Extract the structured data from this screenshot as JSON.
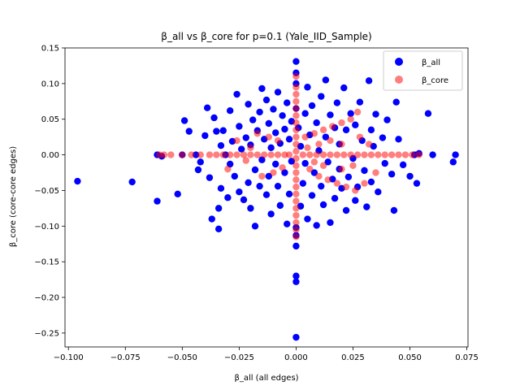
{
  "chart_data": {
    "type": "scatter",
    "title": "β_all vs β_core for p=0.1 (Yale_IID_Sample)",
    "xlabel": "β_all (all edges)",
    "ylabel": "β_core (core-core edges)",
    "xlim": [
      -0.1015,
      0.0755
    ],
    "ylim": [
      -0.2695,
      0.15
    ],
    "xticks": [
      -0.1,
      -0.075,
      -0.05,
      -0.025,
      0.0,
      0.025,
      0.05,
      0.075
    ],
    "xtick_labels": [
      "−0.100",
      "−0.075",
      "−0.050",
      "−0.025",
      "0.000",
      "0.025",
      "0.050",
      "0.075"
    ],
    "yticks": [
      -0.25,
      -0.2,
      -0.15,
      -0.1,
      -0.05,
      0.0,
      0.05,
      0.1,
      0.15
    ],
    "ytick_labels": [
      "−0.25",
      "−0.20",
      "−0.15",
      "−0.10",
      "−0.05",
      "0.00",
      "0.05",
      "0.10",
      "0.15"
    ],
    "grid": false,
    "legend_position": "top-right",
    "series": [
      {
        "name": "β_all",
        "color": "#0000ff",
        "points": [
          [
            -0.096,
            -0.037
          ],
          [
            -0.072,
            -0.038
          ],
          [
            -0.061,
            -0.065
          ],
          [
            -0.061,
            0.0
          ],
          [
            -0.059,
            -0.002
          ],
          [
            -0.052,
            -0.055
          ],
          [
            -0.05,
            0.0
          ],
          [
            -0.049,
            0.048
          ],
          [
            -0.047,
            0.033
          ],
          [
            -0.044,
            0.0
          ],
          [
            -0.043,
            -0.021
          ],
          [
            -0.042,
            -0.01
          ],
          [
            -0.04,
            0.027
          ],
          [
            -0.039,
            0.066
          ],
          [
            -0.038,
            -0.032
          ],
          [
            -0.037,
            -0.09
          ],
          [
            -0.036,
            0.052
          ],
          [
            -0.035,
            0.033
          ],
          [
            -0.034,
            -0.075
          ],
          [
            -0.034,
            -0.104
          ],
          [
            -0.033,
            0.013
          ],
          [
            -0.033,
            -0.047
          ],
          [
            -0.032,
            0.034
          ],
          [
            -0.031,
            0.0
          ],
          [
            -0.03,
            -0.06
          ],
          [
            -0.029,
            0.062
          ],
          [
            -0.029,
            -0.013
          ],
          [
            -0.028,
            0.019
          ],
          [
            -0.027,
            -0.03
          ],
          [
            -0.026,
            0.085
          ],
          [
            -0.025,
            0.04
          ],
          [
            -0.025,
            -0.052
          ],
          [
            -0.024,
            0.008
          ],
          [
            -0.023,
            -0.063
          ],
          [
            -0.022,
            0.024
          ],
          [
            -0.021,
            -0.039
          ],
          [
            -0.021,
            0.071
          ],
          [
            -0.02,
            -0.075
          ],
          [
            -0.02,
            0.014
          ],
          [
            -0.019,
            0.049
          ],
          [
            -0.018,
            -0.021
          ],
          [
            -0.018,
            -0.1
          ],
          [
            -0.017,
            0.034
          ],
          [
            -0.016,
            -0.044
          ],
          [
            -0.016,
            0.06
          ],
          [
            -0.015,
            -0.007
          ],
          [
            -0.015,
            0.093
          ],
          [
            -0.014,
            0.022
          ],
          [
            -0.013,
            -0.056
          ],
          [
            -0.013,
            0.077
          ],
          [
            -0.012,
            -0.03
          ],
          [
            -0.012,
            0.044
          ],
          [
            -0.011,
            0.01
          ],
          [
            -0.011,
            -0.083
          ],
          [
            -0.01,
            0.064
          ],
          [
            -0.009,
            -0.013
          ],
          [
            -0.009,
            0.031
          ],
          [
            -0.008,
            -0.044
          ],
          [
            -0.008,
            0.088
          ],
          [
            -0.007,
            -0.071
          ],
          [
            -0.007,
            0.016
          ],
          [
            -0.006,
            0.055
          ],
          [
            -0.005,
            -0.025
          ],
          [
            -0.005,
            0.036
          ],
          [
            -0.004,
            -0.097
          ],
          [
            -0.004,
            0.073
          ],
          [
            -0.003,
            -0.055
          ],
          [
            -0.003,
            0.022
          ],
          [
            -0.002,
            -0.009
          ],
          [
            -0.002,
            0.047
          ],
          [
            0.0,
            0.131
          ],
          [
            0.0,
            0.115
          ],
          [
            0.0,
            0.1
          ],
          [
            0.0,
            0.065
          ],
          [
            0.0,
            -0.17
          ],
          [
            0.0,
            -0.178
          ],
          [
            0.0,
            -0.256
          ],
          [
            0.0,
            -0.113
          ],
          [
            0.0,
            -0.102
          ],
          [
            0.0,
            -0.128
          ],
          [
            0.001,
            0.038
          ],
          [
            0.002,
            -0.072
          ],
          [
            0.002,
            0.012
          ],
          [
            0.003,
            -0.04
          ],
          [
            0.004,
            0.058
          ],
          [
            0.004,
            -0.012
          ],
          [
            0.005,
            0.095
          ],
          [
            0.005,
            -0.09
          ],
          [
            0.006,
            0.028
          ],
          [
            0.007,
            -0.057
          ],
          [
            0.007,
            0.069
          ],
          [
            0.008,
            -0.025
          ],
          [
            0.009,
            0.045
          ],
          [
            0.009,
            -0.099
          ],
          [
            0.01,
            0.006
          ],
          [
            0.011,
            -0.044
          ],
          [
            0.011,
            0.082
          ],
          [
            0.012,
            -0.07
          ],
          [
            0.013,
            0.025
          ],
          [
            0.013,
            0.105
          ],
          [
            0.014,
            -0.01
          ],
          [
            0.015,
            0.056
          ],
          [
            0.015,
            -0.095
          ],
          [
            0.016,
            -0.034
          ],
          [
            0.017,
            0.038
          ],
          [
            0.017,
            -0.061
          ],
          [
            0.018,
            0.073
          ],
          [
            0.019,
            -0.02
          ],
          [
            0.019,
            0.015
          ],
          [
            0.02,
            -0.047
          ],
          [
            0.021,
            0.094
          ],
          [
            0.022,
            -0.078
          ],
          [
            0.022,
            0.035
          ],
          [
            0.023,
            -0.031
          ],
          [
            0.024,
            0.058
          ],
          [
            0.025,
            -0.005
          ],
          [
            0.026,
            -0.064
          ],
          [
            0.026,
            0.042
          ],
          [
            0.027,
            -0.045
          ],
          [
            0.028,
            0.074
          ],
          [
            0.029,
            0.02
          ],
          [
            0.03,
            -0.022
          ],
          [
            0.031,
            -0.073
          ],
          [
            0.032,
            0.104
          ],
          [
            0.033,
            0.035
          ],
          [
            0.033,
            -0.038
          ],
          [
            0.034,
            0.012
          ],
          [
            0.035,
            0.057
          ],
          [
            0.036,
            -0.052
          ],
          [
            0.038,
            0.024
          ],
          [
            0.039,
            -0.012
          ],
          [
            0.04,
            0.049
          ],
          [
            0.042,
            -0.027
          ],
          [
            0.043,
            -0.078
          ],
          [
            0.044,
            0.074
          ],
          [
            0.045,
            0.022
          ],
          [
            0.047,
            -0.014
          ],
          [
            0.05,
            -0.03
          ],
          [
            0.053,
            -0.04
          ],
          [
            0.054,
            0.002
          ],
          [
            0.058,
            0.058
          ],
          [
            0.06,
            0.0
          ],
          [
            0.069,
            -0.01
          ],
          [
            0.07,
            0.0
          ],
          [
            0.052,
            0.0
          ]
        ]
      },
      {
        "name": "β_core",
        "color": "#ff0000",
        "opacity": 0.5,
        "points": [
          [
            -0.06,
            0.0
          ],
          [
            -0.058,
            0.0
          ],
          [
            -0.055,
            0.0
          ],
          [
            -0.05,
            0.0
          ],
          [
            -0.046,
            0.0
          ],
          [
            -0.042,
            0.0
          ],
          [
            -0.038,
            0.0
          ],
          [
            -0.035,
            0.0
          ],
          [
            -0.032,
            0.0
          ],
          [
            -0.029,
            0.0
          ],
          [
            -0.026,
            0.0
          ],
          [
            -0.023,
            0.0
          ],
          [
            -0.02,
            0.0
          ],
          [
            -0.017,
            0.0
          ],
          [
            -0.014,
            0.0
          ],
          [
            -0.011,
            0.0
          ],
          [
            -0.008,
            0.0
          ],
          [
            -0.005,
            0.0
          ],
          [
            -0.003,
            0.0
          ],
          [
            0.003,
            0.0
          ],
          [
            0.006,
            0.0
          ],
          [
            0.009,
            0.0
          ],
          [
            0.012,
            0.0
          ],
          [
            0.015,
            0.0
          ],
          [
            0.018,
            0.0
          ],
          [
            0.021,
            0.0
          ],
          [
            0.024,
            0.0
          ],
          [
            0.027,
            0.0
          ],
          [
            0.03,
            0.0
          ],
          [
            0.033,
            0.0
          ],
          [
            0.036,
            0.0
          ],
          [
            0.039,
            0.0
          ],
          [
            0.042,
            0.0
          ],
          [
            0.045,
            0.0
          ],
          [
            0.048,
            0.0
          ],
          [
            0.051,
            0.0
          ],
          [
            0.054,
            0.0
          ],
          [
            0.0,
            0.11
          ],
          [
            0.0,
            0.095
          ],
          [
            0.0,
            0.085
          ],
          [
            0.0,
            0.075
          ],
          [
            0.0,
            0.065
          ],
          [
            0.0,
            0.055
          ],
          [
            0.0,
            0.045
          ],
          [
            0.0,
            0.035
          ],
          [
            0.0,
            0.025
          ],
          [
            0.0,
            0.015
          ],
          [
            0.0,
            0.005
          ],
          [
            0.0,
            -0.005
          ],
          [
            0.0,
            -0.015
          ],
          [
            0.0,
            -0.025
          ],
          [
            0.0,
            -0.035
          ],
          [
            0.0,
            -0.045
          ],
          [
            0.0,
            -0.055
          ],
          [
            0.0,
            -0.065
          ],
          [
            0.0,
            -0.075
          ],
          [
            0.0,
            -0.085
          ],
          [
            0.0,
            -0.095
          ],
          [
            0.0,
            -0.105
          ],
          [
            0.0,
            -0.115
          ],
          [
            -0.017,
            0.03
          ],
          [
            -0.012,
            0.025
          ],
          [
            -0.008,
            0.02
          ],
          [
            -0.015,
            -0.03
          ],
          [
            -0.01,
            -0.025
          ],
          [
            -0.006,
            -0.018
          ],
          [
            -0.02,
            0.01
          ],
          [
            -0.022,
            -0.008
          ],
          [
            -0.026,
            0.02
          ],
          [
            -0.03,
            -0.02
          ],
          [
            0.004,
            0.025
          ],
          [
            0.008,
            0.03
          ],
          [
            0.012,
            0.035
          ],
          [
            0.016,
            0.04
          ],
          [
            0.02,
            0.045
          ],
          [
            0.024,
            0.05
          ],
          [
            0.027,
            0.06
          ],
          [
            0.006,
            -0.02
          ],
          [
            0.01,
            -0.03
          ],
          [
            0.014,
            -0.035
          ],
          [
            0.018,
            -0.04
          ],
          [
            0.022,
            -0.045
          ],
          [
            0.026,
            -0.05
          ],
          [
            0.03,
            -0.04
          ],
          [
            0.005,
            0.01
          ],
          [
            0.008,
            -0.01
          ],
          [
            0.02,
            0.015
          ],
          [
            0.025,
            -0.015
          ],
          [
            0.028,
            0.025
          ],
          [
            0.015,
            0.02
          ],
          [
            0.01,
            0.015
          ],
          [
            0.012,
            -0.015
          ],
          [
            0.02,
            -0.02
          ],
          [
            0.032,
            0.015
          ],
          [
            0.035,
            -0.025
          ]
        ]
      }
    ]
  }
}
